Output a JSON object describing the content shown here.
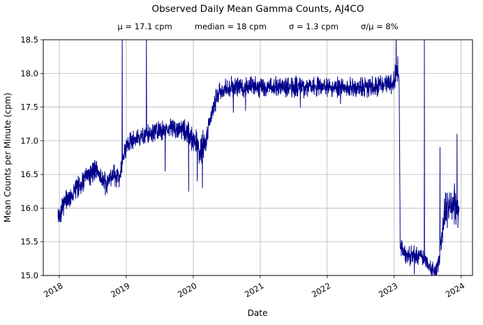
{
  "chart_data": {
    "type": "line",
    "title": "Observed Daily Mean Gamma Counts, AJ4CO",
    "stats": [
      "μ = 17.1 cpm",
      "median = 18 cpm",
      "σ = 1.3 cpm",
      "σ/μ = 8%"
    ],
    "xlabel": "Date",
    "ylabel": "Mean Counts per Minute (cpm)",
    "x_ticks": [
      2018,
      2019,
      2020,
      2021,
      2022,
      2023,
      2024
    ],
    "y_ticks": [
      15.0,
      15.5,
      16.0,
      16.5,
      17.0,
      17.5,
      18.0,
      18.5
    ],
    "xlim": [
      2017.76,
      2024.17
    ],
    "ylim": [
      15.0,
      18.5
    ],
    "grid": true,
    "legend": "none",
    "line_color": "#00008b",
    "grid_color": "#b4b4b4",
    "series_name": "daily-mean-gamma-counts",
    "sample_step_days": 1,
    "trend": [
      [
        2017.98,
        15.85,
        0.12
      ],
      [
        2018.05,
        16.05,
        0.1
      ],
      [
        2018.15,
        16.15,
        0.09
      ],
      [
        2018.3,
        16.35,
        0.09
      ],
      [
        2018.45,
        16.5,
        0.1
      ],
      [
        2018.55,
        16.6,
        0.1
      ],
      [
        2018.62,
        16.45,
        0.09
      ],
      [
        2018.7,
        16.32,
        0.1
      ],
      [
        2018.78,
        16.5,
        0.09
      ],
      [
        2018.85,
        16.42,
        0.12
      ],
      [
        2018.92,
        16.55,
        0.1
      ],
      [
        2019.0,
        16.95,
        0.09
      ],
      [
        2019.1,
        17.0,
        0.08
      ],
      [
        2019.2,
        17.05,
        0.08
      ],
      [
        2019.35,
        17.1,
        0.08
      ],
      [
        2019.5,
        17.15,
        0.08
      ],
      [
        2019.7,
        17.2,
        0.08
      ],
      [
        2019.85,
        17.15,
        0.09
      ],
      [
        2019.95,
        17.08,
        0.11
      ],
      [
        2020.05,
        16.95,
        0.13
      ],
      [
        2020.1,
        16.85,
        0.15
      ],
      [
        2020.17,
        16.95,
        0.12
      ],
      [
        2020.25,
        17.3,
        0.1
      ],
      [
        2020.33,
        17.6,
        0.09
      ],
      [
        2020.4,
        17.75,
        0.08
      ],
      [
        2020.6,
        17.8,
        0.09
      ],
      [
        2021.0,
        17.8,
        0.09
      ],
      [
        2021.5,
        17.8,
        0.09
      ],
      [
        2022.0,
        17.8,
        0.09
      ],
      [
        2022.5,
        17.78,
        0.09
      ],
      [
        2023.0,
        17.85,
        0.09
      ],
      [
        2023.02,
        17.95,
        0.12
      ],
      [
        2023.06,
        18.0,
        0.13
      ],
      [
        2023.075,
        17.9,
        0.1
      ],
      [
        2023.09,
        15.45,
        0.09
      ],
      [
        2023.2,
        15.3,
        0.09
      ],
      [
        2023.35,
        15.3,
        0.08
      ],
      [
        2023.45,
        15.25,
        0.08
      ],
      [
        2023.55,
        15.1,
        0.07
      ],
      [
        2023.62,
        15.05,
        0.06
      ],
      [
        2023.68,
        15.3,
        0.1
      ],
      [
        2023.75,
        15.9,
        0.16
      ],
      [
        2023.85,
        16.05,
        0.18
      ],
      [
        2023.92,
        16.1,
        0.18
      ],
      [
        2023.97,
        15.9,
        0.12
      ]
    ],
    "spikes": [
      [
        2018.94,
        18.6
      ],
      [
        2019.3,
        18.6
      ],
      [
        2019.58,
        16.55
      ],
      [
        2019.93,
        16.25
      ],
      [
        2020.06,
        16.4
      ],
      [
        2020.135,
        16.3
      ],
      [
        2020.6,
        17.42
      ],
      [
        2020.78,
        17.45
      ],
      [
        2021.6,
        17.5
      ],
      [
        2022.2,
        17.55
      ],
      [
        2023.03,
        18.6
      ],
      [
        2023.055,
        18.25
      ],
      [
        2023.3,
        15.02
      ],
      [
        2023.45,
        18.6
      ],
      [
        2023.57,
        14.97
      ],
      [
        2023.685,
        16.9
      ],
      [
        2023.94,
        17.1
      ]
    ]
  }
}
